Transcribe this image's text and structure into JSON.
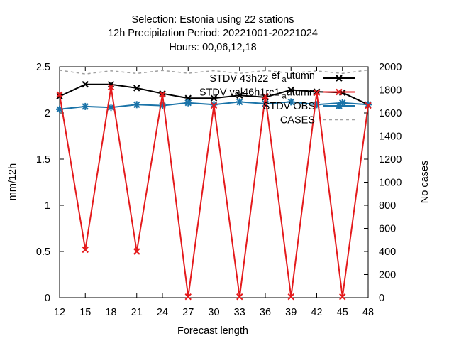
{
  "chart_data": {
    "type": "line",
    "title_lines": [
      "Selection: Estonia using     22 stations",
      "12h Precipitation    Period: 20221001-20221024",
      "Hours:  00,06,12,18"
    ],
    "xlabel": "Forecast length",
    "ylabel": "mm/12h",
    "y2label": "No cases",
    "x": [
      12,
      15,
      18,
      21,
      24,
      27,
      30,
      33,
      36,
      39,
      42,
      45,
      48
    ],
    "xlim": [
      12,
      48
    ],
    "ylim": [
      0,
      2.5
    ],
    "y2lim": [
      0,
      2000
    ],
    "yticks": [
      0,
      0.5,
      1,
      1.5,
      2,
      2.5
    ],
    "yticklabels": [
      "0",
      "0.5",
      "1",
      "1.5",
      "2",
      "2.5"
    ],
    "y2ticks": [
      0,
      200,
      400,
      600,
      800,
      1000,
      1200,
      1400,
      1600,
      1800,
      2000
    ],
    "legend_position": "top-right",
    "series": [
      {
        "name": "STDV 43h22_ef_autumn",
        "legend_base": "STDV 43h22",
        "legend_sub": "ef",
        "legend_sub2": "a",
        "legend_tail": "utumn",
        "color": "#000000",
        "axis": "y",
        "dash": "",
        "marker": "x",
        "values": [
          2.18,
          2.31,
          2.31,
          2.27,
          2.21,
          2.16,
          2.16,
          2.19,
          2.17,
          2.25,
          2.23,
          2.22,
          2.09
        ]
      },
      {
        "name": "STDV val46h1rc1_autumn",
        "legend_base": "STDV val46h1rc1",
        "legend_sub": "",
        "legend_sub2": "a",
        "legend_tail": "utumn",
        "color": "#e41a1c",
        "axis": "y",
        "dash": "",
        "marker": "x",
        "values": [
          2.2,
          0.52,
          2.28,
          0.5,
          2.2,
          0.01,
          2.08,
          0.01,
          2.18,
          0.01,
          2.22,
          0.01,
          2.08
        ]
      },
      {
        "name": "STDV OBS",
        "legend_base": "STDV OBS",
        "legend_sub": "",
        "legend_sub2": "",
        "legend_tail": "",
        "color": "#1a73a8",
        "axis": "y",
        "dash": "",
        "marker": "star",
        "values": [
          2.04,
          2.07,
          2.06,
          2.09,
          2.08,
          2.11,
          2.09,
          2.12,
          2.1,
          2.12,
          2.09,
          2.11,
          2.09
        ]
      },
      {
        "name": "CASES",
        "legend_base": "CASES",
        "legend_sub": "",
        "legend_sub2": "",
        "legend_tail": "",
        "color": "#a0a0a0",
        "axis": "y2",
        "dash": "4,4",
        "marker": "",
        "values": [
          1970,
          1938,
          1965,
          1942,
          1968,
          1944,
          1966,
          1943,
          1967,
          1945,
          1964,
          1942,
          1972
        ]
      }
    ]
  }
}
